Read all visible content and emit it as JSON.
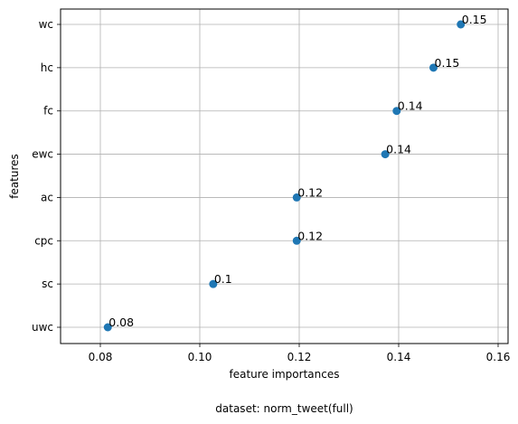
{
  "chart_data": {
    "type": "scatter",
    "xlabel": "feature importances",
    "ylabel": "features",
    "caption": "dataset: norm_tweet(full)",
    "xlim": [
      0.072,
      0.162
    ],
    "x_ticks": [
      "0.08",
      "0.10",
      "0.12",
      "0.14",
      "0.16"
    ],
    "x_tick_values": [
      0.08,
      0.1,
      0.12,
      0.14,
      0.16
    ],
    "grid": true,
    "point_color": "#1f77b4",
    "categories": [
      "uwc",
      "sc",
      "cpc",
      "ac",
      "ewc",
      "fc",
      "hc",
      "wc"
    ],
    "points": [
      {
        "feature": "uwc",
        "x": 0.0815,
        "label": "0.08"
      },
      {
        "feature": "sc",
        "x": 0.1027,
        "label": "0.1"
      },
      {
        "feature": "cpc",
        "x": 0.1195,
        "label": "0.12"
      },
      {
        "feature": "ac",
        "x": 0.1195,
        "label": "0.12"
      },
      {
        "feature": "ewc",
        "x": 0.1373,
        "label": "0.14"
      },
      {
        "feature": "fc",
        "x": 0.1396,
        "label": "0.14"
      },
      {
        "feature": "hc",
        "x": 0.147,
        "label": "0.15"
      },
      {
        "feature": "wc",
        "x": 0.1525,
        "label": "0.15"
      }
    ]
  }
}
